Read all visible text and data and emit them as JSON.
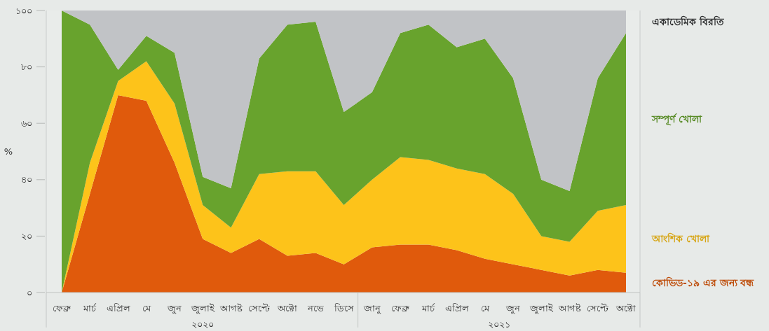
{
  "chart_data": {
    "type": "area",
    "stacked": true,
    "ylabel": "%",
    "legend": "right",
    "categories": [
      "ফেব্রু",
      "মার্চ",
      "এপ্রিল",
      "মে",
      "জুন",
      "জুলাই",
      "আগষ্ট",
      "সেপ্টে",
      "অক্টো",
      "নভে",
      "ডিসে",
      "জানু",
      "ফেব্রু",
      "মার্চ",
      "এপ্রিল",
      "মে",
      "জুন",
      "জুলাই",
      "আগষ্ট",
      "সেপ্টে",
      "অক্টো"
    ],
    "series": [
      {
        "name": "কোভিড-১৯ এর জন্য বন্ধ",
        "color": "#e05a0c",
        "values": [
          0,
          35,
          70,
          68,
          46,
          19,
          14,
          19,
          13,
          14,
          10,
          16,
          17,
          17,
          15,
          12,
          10,
          8,
          6,
          8,
          7
        ]
      },
      {
        "name": "আংশিক খোলা",
        "color": "#fdc31a",
        "values": [
          0,
          11,
          5,
          14,
          21,
          12,
          9,
          23,
          30,
          29,
          21,
          24,
          31,
          30,
          29,
          30,
          25,
          12,
          12,
          21,
          24
        ]
      },
      {
        "name": "সম্পূর্ণ খোলা",
        "color": "#68a32d",
        "values": [
          100,
          49,
          4,
          9,
          18,
          10,
          14,
          41,
          52,
          53,
          33,
          31,
          44,
          48,
          43,
          48,
          41,
          20,
          18,
          47,
          61
        ]
      },
      {
        "name": "একাডেমিক বিরতি",
        "color": "#c1c3c6",
        "values": [
          0,
          5,
          21,
          9,
          15,
          59,
          63,
          17,
          5,
          4,
          36,
          29,
          8,
          5,
          13,
          10,
          24,
          60,
          64,
          24,
          8
        ]
      }
    ],
    "ylim": [
      0,
      100
    ],
    "yticks": [
      {
        "value": 0,
        "label": "০"
      },
      {
        "value": 20,
        "label": "২০"
      },
      {
        "value": 40,
        "label": "৪০"
      },
      {
        "value": 60,
        "label": "৬০"
      },
      {
        "value": 80,
        "label": "৮০"
      },
      {
        "value": 100,
        "label": "১০০"
      }
    ],
    "annotations": [
      "২০২০",
      "২০২১"
    ]
  }
}
